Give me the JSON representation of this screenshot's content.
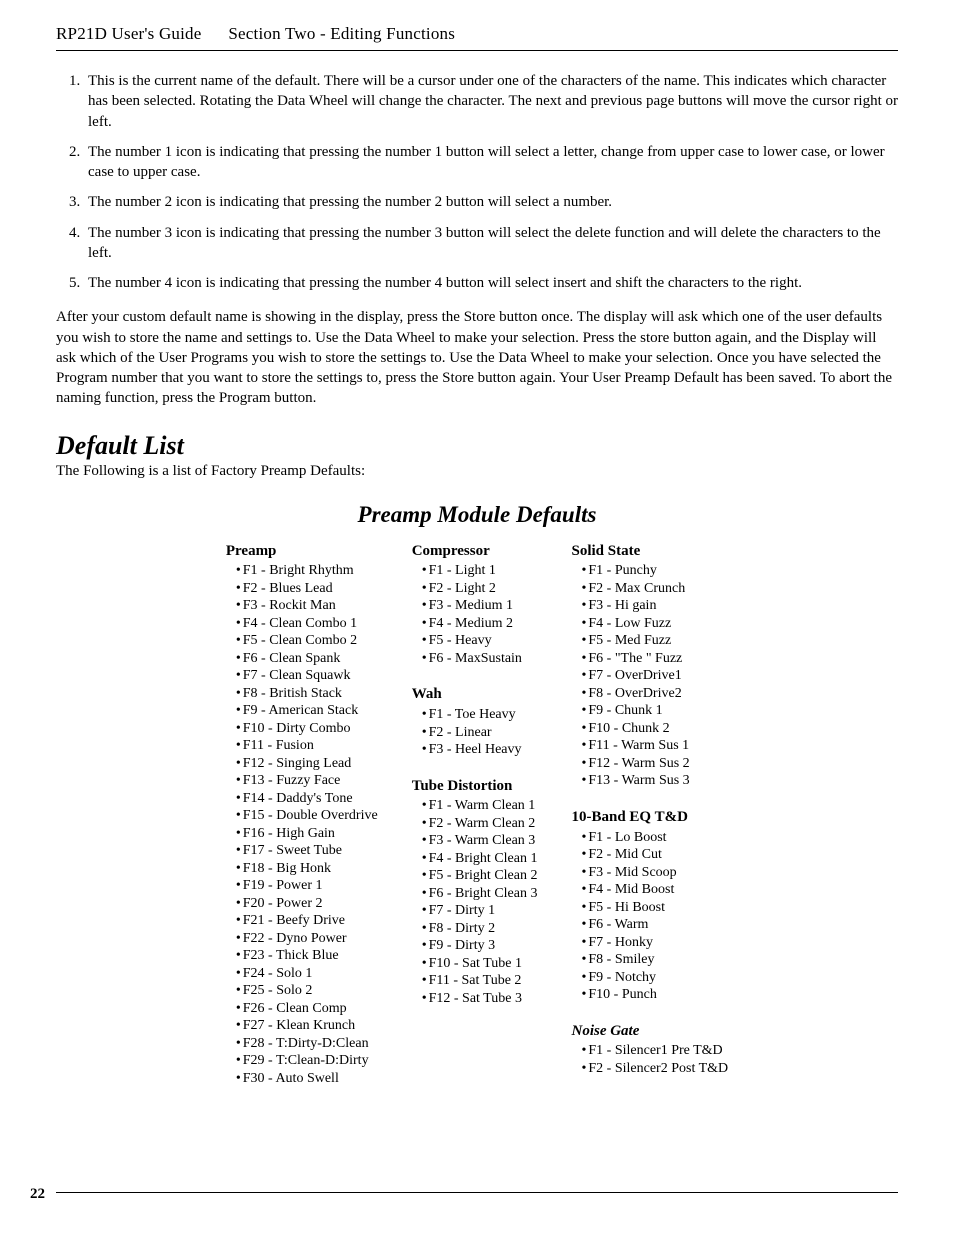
{
  "header": {
    "guide": "RP21D User's Guide",
    "section": "Section Two - Editing Functions"
  },
  "steps": [
    "This is the current name of the default. There will be a cursor under one of the characters of the name. This indicates which character has been selected. Rotating the Data Wheel will change the character. The next and previous page buttons will move the cursor right or left.",
    "The number 1 icon is indicating that pressing the number 1 button will select a letter, change from upper case to lower case, or lower case to upper case.",
    "The number 2 icon is indicating that pressing the number 2 button will select a number.",
    "The number 3 icon is indicating that pressing the number 3 button will select the delete function and will delete the characters to the left.",
    "The number 4 icon is indicating that pressing the number 4 button will select insert and shift the characters to the right."
  ],
  "after_para": "After your custom default name is showing in the display, press the Store button once. The display will ask which one of the user defaults you wish to store the name and settings to. Use the Data Wheel to make your selection.  Press the store button again, and the Display will ask which of the User Programs you wish to store the settings to. Use the Data Wheel to make your selection. Once you have selected the Program number that you want to store the settings to, press the Store button again. Your User Preamp Default has been saved. To abort the naming function, press the Program button.",
  "default_list_heading": "Default List",
  "default_list_intro": "The Following is a list of Factory Preamp Defaults:",
  "module_title": "Preamp Module Defaults",
  "columns": [
    {
      "groups": [
        {
          "title": "Preamp",
          "italic": false,
          "items": [
            "F1 - Bright Rhythm",
            "F2 - Blues Lead",
            "F3 - Rockit Man",
            "F4 - Clean Combo 1",
            "F5 - Clean Combo 2",
            "F6 - Clean Spank",
            "F7 - Clean Squawk",
            "F8 - British Stack",
            "F9 - American Stack",
            "F10 - Dirty Combo",
            "F11 - Fusion",
            "F12 - Singing Lead",
            "F13 - Fuzzy Face",
            "F14 - Daddy's Tone",
            "F15 - Double Overdrive",
            "F16 - High Gain",
            "F17 - Sweet Tube",
            "F18 - Big Honk",
            "F19 - Power 1",
            "F20 - Power 2",
            "F21 - Beefy Drive",
            "F22 - Dyno Power",
            "F23 - Thick Blue",
            "F24 - Solo 1",
            "F25 - Solo 2",
            "F26 - Clean Comp",
            "F27 - Klean Krunch",
            "F28 - T:Dirty-D:Clean",
            "F29 - T:Clean-D:Dirty",
            "F30 - Auto Swell"
          ]
        }
      ]
    },
    {
      "groups": [
        {
          "title": "Compressor",
          "italic": false,
          "items": [
            "F1 - Light 1",
            "F2 - Light 2",
            "F3 - Medium 1",
            "F4 - Medium 2",
            "F5 - Heavy",
            "F6 - MaxSustain"
          ]
        },
        {
          "title": "Wah",
          "italic": false,
          "items": [
            "F1 - Toe Heavy",
            "F2 - Linear",
            "F3 - Heel Heavy"
          ]
        },
        {
          "title": "Tube Distortion",
          "italic": false,
          "items": [
            "F1 - Warm Clean 1",
            "F2 - Warm Clean 2",
            "F3 - Warm Clean 3",
            "F4 - Bright Clean 1",
            "F5 - Bright Clean 2",
            "F6 - Bright Clean 3",
            "F7 - Dirty 1",
            "F8 - Dirty 2",
            "F9 - Dirty 3",
            "F10 - Sat Tube 1",
            "F11 - Sat Tube 2",
            "F12 - Sat Tube 3"
          ]
        }
      ]
    },
    {
      "groups": [
        {
          "title": "Solid State",
          "italic": false,
          "items": [
            "F1 - Punchy",
            "F2 - Max Crunch",
            "F3 - Hi gain",
            "F4 - Low Fuzz",
            "F5 - Med Fuzz",
            "F6 - \"The \" Fuzz",
            "F7 - OverDrive1",
            "F8 - OverDrive2",
            "F9 - Chunk 1",
            "F10 - Chunk 2",
            "F11 - Warm Sus 1",
            "F12 - Warm Sus 2",
            "F13 - Warm Sus 3"
          ]
        },
        {
          "title": "10-Band EQ T&D",
          "italic": false,
          "items": [
            "F1 - Lo Boost",
            "F2 - Mid Cut",
            "F3 - Mid Scoop",
            "F4 - Mid Boost",
            "F5 - Hi Boost",
            "F6 - Warm",
            "F7 - Honky",
            "F8 - Smiley",
            "F9 - Notchy",
            "F10 - Punch"
          ]
        },
        {
          "title": "Noise Gate",
          "italic": true,
          "items": [
            "F1 - Silencer1 Pre T&D",
            "F2 - Silencer2 Post T&D"
          ]
        }
      ]
    }
  ],
  "page_number": "22"
}
